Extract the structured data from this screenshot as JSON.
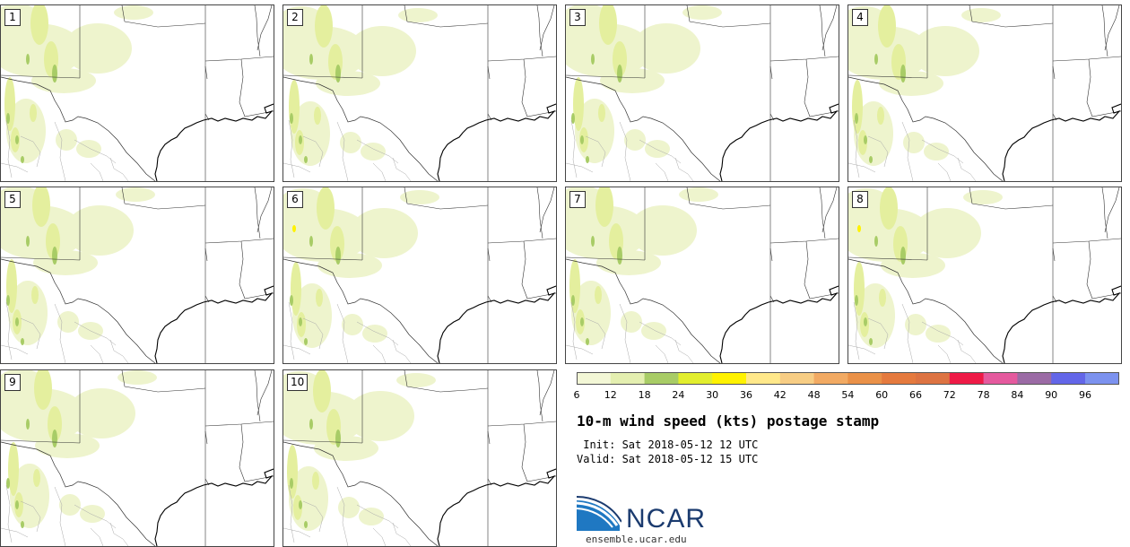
{
  "members": [
    {
      "label": "1"
    },
    {
      "label": "2"
    },
    {
      "label": "3"
    },
    {
      "label": "4"
    },
    {
      "label": "5"
    },
    {
      "label": "6"
    },
    {
      "label": "7"
    },
    {
      "label": "8"
    },
    {
      "label": "9"
    },
    {
      "label": "10"
    }
  ],
  "colorbar": {
    "ticks": [
      "6",
      "12",
      "18",
      "24",
      "30",
      "36",
      "42",
      "48",
      "54",
      "60",
      "66",
      "72",
      "78",
      "84",
      "90",
      "96"
    ],
    "colors": [
      "#f3f7d6",
      "#e4efb0",
      "#a8cc66",
      "#e2ee2e",
      "#fff200",
      "#ffe88a",
      "#f7cd84",
      "#f2aa63",
      "#ea9148",
      "#e57a3e",
      "#dd7342",
      "#ee1a46",
      "#e55a9e",
      "#9b6ba5",
      "#6366e8",
      "#7c92ef",
      "#b3c7f7"
    ]
  },
  "title": "10-m wind speed (kts) postage stamp",
  "init_text": " Init: Sat 2018-05-12 12 UTC",
  "valid_text": "Valid: Sat 2018-05-12 15 UTC",
  "logo": {
    "text": "NCAR",
    "url": "ensemble.ucar.edu"
  }
}
